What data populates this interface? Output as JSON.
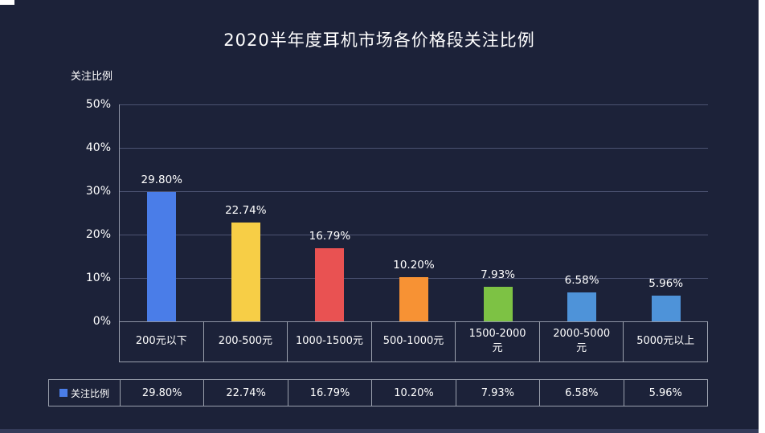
{
  "chart_data": {
    "type": "bar",
    "title": "2020半年度耳机市场各价格段关注比例",
    "ylabel": "关注比例",
    "xlabel": "",
    "categories": [
      "200元以下",
      "200-500元",
      "1000-1500元",
      "500-1000元",
      "1500-2000元",
      "2000-5000元",
      "5000元以上"
    ],
    "categories_display": [
      "200元以下",
      "200-500元",
      "1000-1500元",
      "500-1000元",
      "1500-2000\n元",
      "2000-5000\n元",
      "5000元以上"
    ],
    "series": [
      {
        "name": "关注比例",
        "values": [
          29.8,
          22.74,
          16.79,
          10.2,
          7.93,
          6.58,
          5.96
        ]
      }
    ],
    "value_labels": [
      "29.80%",
      "22.74%",
      "16.79%",
      "10.20%",
      "7.93%",
      "6.58%",
      "5.96%"
    ],
    "bar_colors": [
      "#4a7de8",
      "#f7ce46",
      "#e95252",
      "#f79234",
      "#7dc244",
      "#4e93d9",
      "#4e93d9"
    ],
    "ylim": [
      0,
      50
    ],
    "yticks": [
      {
        "label": "50%",
        "value": 50
      },
      {
        "label": "40%",
        "value": 40
      },
      {
        "label": "30%",
        "value": 30
      },
      {
        "label": "20%",
        "value": 20
      },
      {
        "label": "10%",
        "value": 10
      },
      {
        "label": "0%",
        "value": 0
      }
    ],
    "grid": true,
    "legend_position": "bottom-table"
  },
  "table": {
    "legend_label": "关注比例",
    "values": [
      "29.80%",
      "22.74%",
      "16.79%",
      "10.20%",
      "7.93%",
      "6.58%",
      "5.96%"
    ]
  },
  "colors": {
    "background": "#1c2239",
    "legend_swatch": "#4a7de8",
    "table_border": "#9aa0ad",
    "gridline": "#4c5372",
    "text": "#ffffff"
  }
}
